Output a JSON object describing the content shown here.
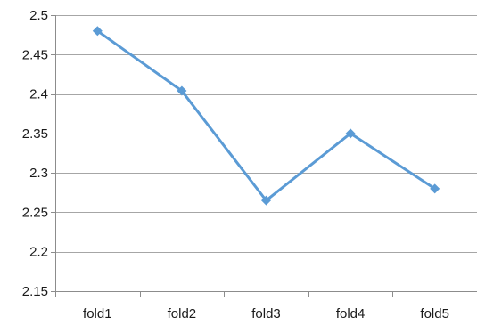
{
  "chart_data": {
    "type": "line",
    "categories": [
      "fold1",
      "fold2",
      "fold3",
      "fold4",
      "fold5"
    ],
    "series": [
      {
        "values": [
          2.48,
          2.404,
          2.265,
          2.35,
          2.28
        ],
        "color": "#5b9bd5",
        "marker": "diamond"
      }
    ],
    "ylim": [
      2.15,
      2.5
    ],
    "yticks": [
      2.15,
      2.2,
      2.25,
      2.3,
      2.35,
      2.4,
      2.45,
      2.5
    ],
    "ytick_labels": [
      "2.15",
      "2.2",
      "2.25",
      "2.3",
      "2.35",
      "2.4",
      "2.45",
      "2.5"
    ],
    "grid": true,
    "legend": "none"
  }
}
